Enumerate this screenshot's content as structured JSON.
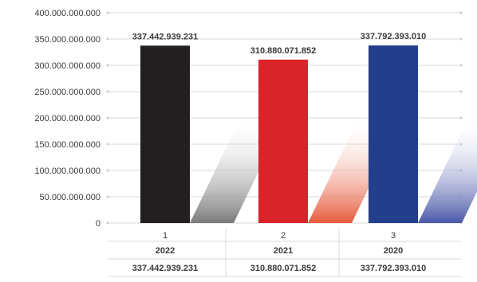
{
  "chart_data": {
    "type": "bar",
    "categories": [
      "1",
      "2",
      "3"
    ],
    "values": [
      337442939231,
      310880071852,
      337792393010
    ],
    "value_labels": [
      "337.442.939.231",
      "310.880.071.852",
      "337.792.393.010"
    ],
    "ylim": [
      0,
      400000000000
    ],
    "yticks": [
      0,
      50000000000,
      100000000000,
      150000000000,
      200000000000,
      250000000000,
      300000000000,
      350000000000,
      400000000000
    ],
    "ytick_labels": [
      "0",
      "50.000.000.000",
      "100.000.000.000",
      "150.000.000.000",
      "200.000.000.000",
      "250.000.000.000",
      "300.000.000.000",
      "350.000.000.000",
      "400.000.000.000"
    ],
    "grid": true,
    "bar_colors": [
      "#231f20",
      "#d9242a",
      "#233e8b"
    ],
    "table_rows": [
      [
        "2022",
        "2021",
        "2020"
      ],
      [
        "337.442.939.231",
        "310.880.071.852",
        "337.792.393.010"
      ]
    ]
  }
}
